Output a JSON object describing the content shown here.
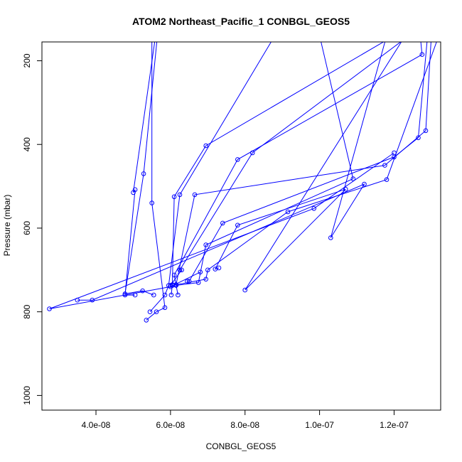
{
  "chart_data": {
    "type": "line",
    "title": "ATOM2 Northeast_Pacific_1 CONBGL_GEOS5",
    "xlabel": "CONBGL_GEOS5",
    "ylabel": "Pressure (mbar)",
    "xlim": [
      2.55e-08,
      1.325e-07
    ],
    "ylim": [
      1035,
      155
    ],
    "y_reversed": true,
    "grid": false,
    "legend": "none",
    "series_color": "#0000ff",
    "marker": "open-circle",
    "x_ticks": [
      {
        "value": 4e-08,
        "label": "4.0e-08"
      },
      {
        "value": 6e-08,
        "label": "6.0e-08"
      },
      {
        "value": 8e-08,
        "label": "8.0e-08"
      },
      {
        "value": 1e-07,
        "label": "1.0e-07"
      },
      {
        "value": 1.2e-07,
        "label": "1.2e-07"
      }
    ],
    "y_ticks": [
      {
        "value": 200,
        "label": "200"
      },
      {
        "value": 400,
        "label": "400"
      },
      {
        "value": 600,
        "label": "600"
      },
      {
        "value": 800,
        "label": "800"
      },
      {
        "value": 1000,
        "label": "1000"
      }
    ],
    "profiles": [
      [
        [
          5.6e-08,
          140
        ],
        [
          5e-08,
          515
        ],
        [
          5.05e-08,
          508
        ],
        [
          4.78e-08,
          760
        ],
        [
          5.05e-08,
          760
        ]
      ],
      [
        [
          5.5e-08,
          140
        ],
        [
          5.5e-08,
          540
        ],
        [
          5.85e-08,
          790
        ],
        [
          5.62e-08,
          800
        ],
        [
          5.35e-08,
          820
        ]
      ],
      [
        [
          5.65e-08,
          140
        ],
        [
          5.28e-08,
          470
        ],
        [
          4.78e-08,
          757
        ],
        [
          5.25e-08,
          750
        ],
        [
          5.55e-08,
          760
        ]
      ],
      [
        [
          8.8e-08,
          140
        ],
        [
          6.25e-08,
          520
        ],
        [
          5.95e-08,
          737
        ],
        [
          5.85e-08,
          760
        ],
        [
          5.45e-08,
          800
        ]
      ],
      [
        [
          1.2e-07,
          140
        ],
        [
          6.95e-08,
          403
        ],
        [
          6.1e-08,
          525
        ],
        [
          6.05e-08,
          735
        ],
        [
          6.02e-08,
          760
        ]
      ],
      [
        [
          1.27e-07,
          140
        ],
        [
          1.275e-07,
          185
        ],
        [
          7.8e-08,
          436
        ],
        [
          6.1e-08,
          712
        ],
        [
          6.2e-08,
          760
        ]
      ],
      [
        [
          1.3e-07,
          140
        ],
        [
          1.285e-07,
          367
        ],
        [
          1.175e-07,
          450
        ],
        [
          6.65e-08,
          520
        ],
        [
          6.15e-08,
          735
        ],
        [
          6.05e-08,
          737
        ]
      ],
      [
        [
          1.24e-07,
          140
        ],
        [
          8.2e-08,
          420
        ],
        [
          6.25e-08,
          700
        ],
        [
          6.3e-08,
          700
        ],
        [
          6e-08,
          737
        ]
      ],
      [
        [
          1.29e-07,
          140
        ],
        [
          1.265e-07,
          384
        ],
        [
          1.2e-07,
          430
        ],
        [
          7.4e-08,
          588
        ],
        [
          6.5e-08,
          727
        ],
        [
          6.45e-08,
          727
        ]
      ],
      [
        [
          1e-07,
          140
        ],
        [
          1.09e-07,
          482
        ],
        [
          6.95e-08,
          640
        ],
        [
          6.75e-08,
          730
        ],
        [
          6.15e-08,
          737
        ]
      ],
      [
        [
          1.32e-07,
          140
        ],
        [
          1.18e-07,
          484
        ],
        [
          9.15e-08,
          561
        ],
        [
          7e-08,
          700
        ],
        [
          6.95e-08,
          722
        ],
        [
          6.05e-08,
          737
        ]
      ],
      [
        [
          1.23e-07,
          140
        ],
        [
          8e-08,
          748
        ],
        [
          1.07e-07,
          507
        ],
        [
          7.8e-08,
          593
        ],
        [
          7.2e-08,
          698
        ],
        [
          7.3e-08,
          695
        ]
      ],
      [
        [
          1.18e-07,
          140
        ],
        [
          1.03e-07,
          623
        ],
        [
          1.12e-07,
          495
        ],
        [
          3.9e-08,
          772
        ],
        [
          3.5e-08,
          772
        ]
      ],
      [
        [
          1.2e-07,
          420
        ],
        [
          9.85e-08,
          553
        ],
        [
          2.75e-08,
          793
        ],
        [
          6e-08,
          740
        ],
        [
          6.8e-08,
          705
        ]
      ]
    ]
  }
}
